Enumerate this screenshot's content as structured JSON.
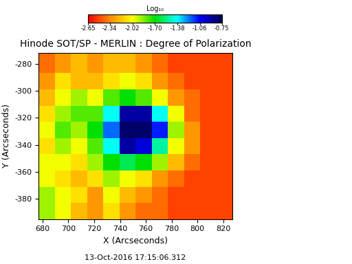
{
  "chart_data": {
    "type": "heatmap",
    "title": "Hinode SOT/SP - MERLIN : Degree of Polarization",
    "x_label": "X (Arcseconds)",
    "y_label": "Y (Arcseconds)",
    "annotation": "13-Oct-2016 17:15:06.312",
    "xlim": [
      677,
      827
    ],
    "ylim": [
      -395,
      -272
    ],
    "xticks": [
      680,
      700,
      720,
      740,
      760,
      780,
      800,
      820
    ],
    "yticks": [
      -380,
      -360,
      -340,
      -320,
      -300,
      -280
    ],
    "x_edges": [
      677,
      689.5,
      702,
      714.5,
      727,
      739.5,
      752,
      764.5,
      777,
      789.5,
      802,
      814.5,
      827
    ],
    "y_edges": [
      -395,
      -383,
      -371,
      -359,
      -347,
      -335,
      -323,
      -311,
      -299,
      -287,
      -272
    ],
    "cells": [
      [
        -1.9,
        -2.0,
        -2.2,
        -2.3,
        -2.1,
        -2.3,
        -2.4,
        -2.4,
        -2.5,
        -2.5,
        -2.5,
        -2.5
      ],
      [
        -1.9,
        -2.0,
        -2.1,
        -2.3,
        -2.0,
        -2.2,
        -2.3,
        -2.4,
        -2.5,
        -2.5,
        -2.5,
        -2.5
      ],
      [
        -2.0,
        -2.1,
        -2.2,
        -2.1,
        -1.9,
        -2.0,
        -2.1,
        -2.3,
        -2.4,
        -2.5,
        -2.5,
        -2.5
      ],
      [
        -2.0,
        -2.0,
        -2.1,
        -1.9,
        -1.7,
        -1.6,
        -1.7,
        -1.9,
        -2.2,
        -2.4,
        -2.5,
        -2.5
      ],
      [
        -2.1,
        -1.9,
        -2.0,
        -1.8,
        -1.4,
        -0.9,
        -1.0,
        -1.5,
        -2.0,
        -2.3,
        -2.5,
        -2.5
      ],
      [
        -2.0,
        -1.8,
        -1.9,
        -1.7,
        -1.2,
        -0.8,
        -0.8,
        -1.1,
        -1.9,
        -2.3,
        -2.5,
        -2.5
      ],
      [
        -2.1,
        -1.9,
        -1.8,
        -1.8,
        -1.4,
        -0.9,
        -0.9,
        -1.4,
        -2.0,
        -2.4,
        -2.5,
        -2.5
      ],
      [
        -2.2,
        -2.0,
        -1.9,
        -2.0,
        -1.8,
        -1.7,
        -1.8,
        -2.0,
        -2.3,
        -2.4,
        -2.5,
        -2.5
      ],
      [
        -2.3,
        -2.1,
        -2.2,
        -2.2,
        -2.1,
        -2.0,
        -2.1,
        -2.3,
        -2.4,
        -2.5,
        -2.5,
        -2.5
      ],
      [
        -2.4,
        -2.3,
        -2.2,
        -2.3,
        -2.2,
        -2.2,
        -2.3,
        -2.4,
        -2.5,
        -2.5,
        -2.5,
        -2.5
      ]
    ],
    "colorbar": {
      "label": "Log₁₀",
      "range": [
        -2.65,
        -0.75
      ],
      "ticks": [
        -2.65,
        -2.34,
        -2.02,
        {
          "value": -1.7,
          "label": "-1.70"
        },
        -1.38,
        -1.06,
        -0.75
      ]
    }
  }
}
